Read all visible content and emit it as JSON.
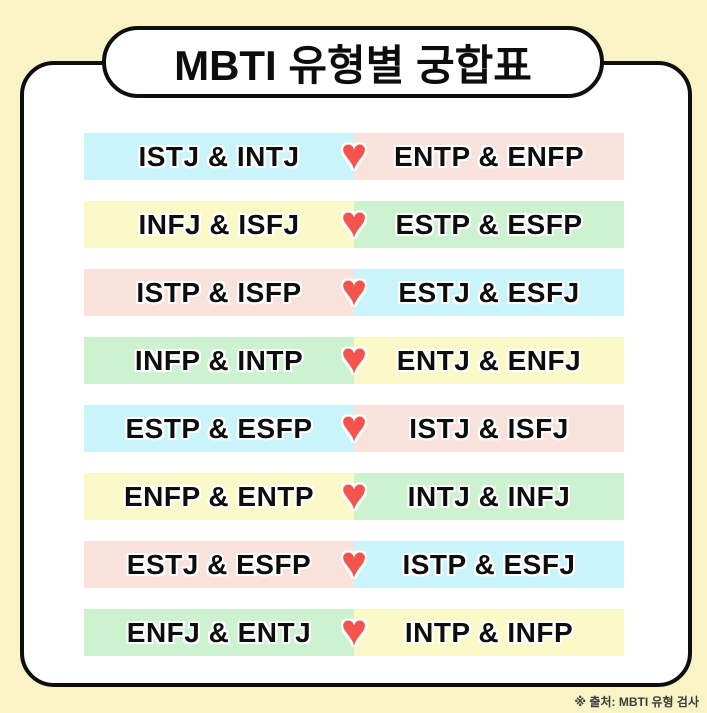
{
  "title": "MBTI 유형별 궁합표",
  "source_note": "※ 출처: MBTI 유형 검사",
  "icons": {
    "heart": "♥"
  },
  "colors": {
    "page_background": "#FAF3C5",
    "card_background": "#FFFFFF",
    "border_black": "#0E0E0E",
    "heart": "#F4534E",
    "blue": "#C9F4F9",
    "pink": "#F8E2DB",
    "yellow": "#FCF9C8",
    "green": "#CCF2D0"
  },
  "rows": [
    {
      "left": "ISTJ & INTJ",
      "right": "ENTP & ENFP",
      "left_color": "blue",
      "right_color": "pink"
    },
    {
      "left": "INFJ & ISFJ",
      "right": "ESTP & ESFP",
      "left_color": "yellow",
      "right_color": "green"
    },
    {
      "left": "ISTP & ISFP",
      "right": "ESTJ & ESFJ",
      "left_color": "pink",
      "right_color": "blue"
    },
    {
      "left": "INFP & INTP",
      "right": "ENTJ & ENFJ",
      "left_color": "green",
      "right_color": "yellow"
    },
    {
      "left": "ESTP & ESFP",
      "right": "ISTJ & ISFJ",
      "left_color": "blue",
      "right_color": "pink"
    },
    {
      "left": "ENFP & ENTP",
      "right": "INTJ & INFJ",
      "left_color": "yellow",
      "right_color": "green"
    },
    {
      "left": "ESTJ & ESFP",
      "right": "ISTP & ESFJ",
      "left_color": "pink",
      "right_color": "blue"
    },
    {
      "left": "ENFJ & ENTJ",
      "right": "INTP & INFP",
      "left_color": "green",
      "right_color": "yellow"
    }
  ]
}
